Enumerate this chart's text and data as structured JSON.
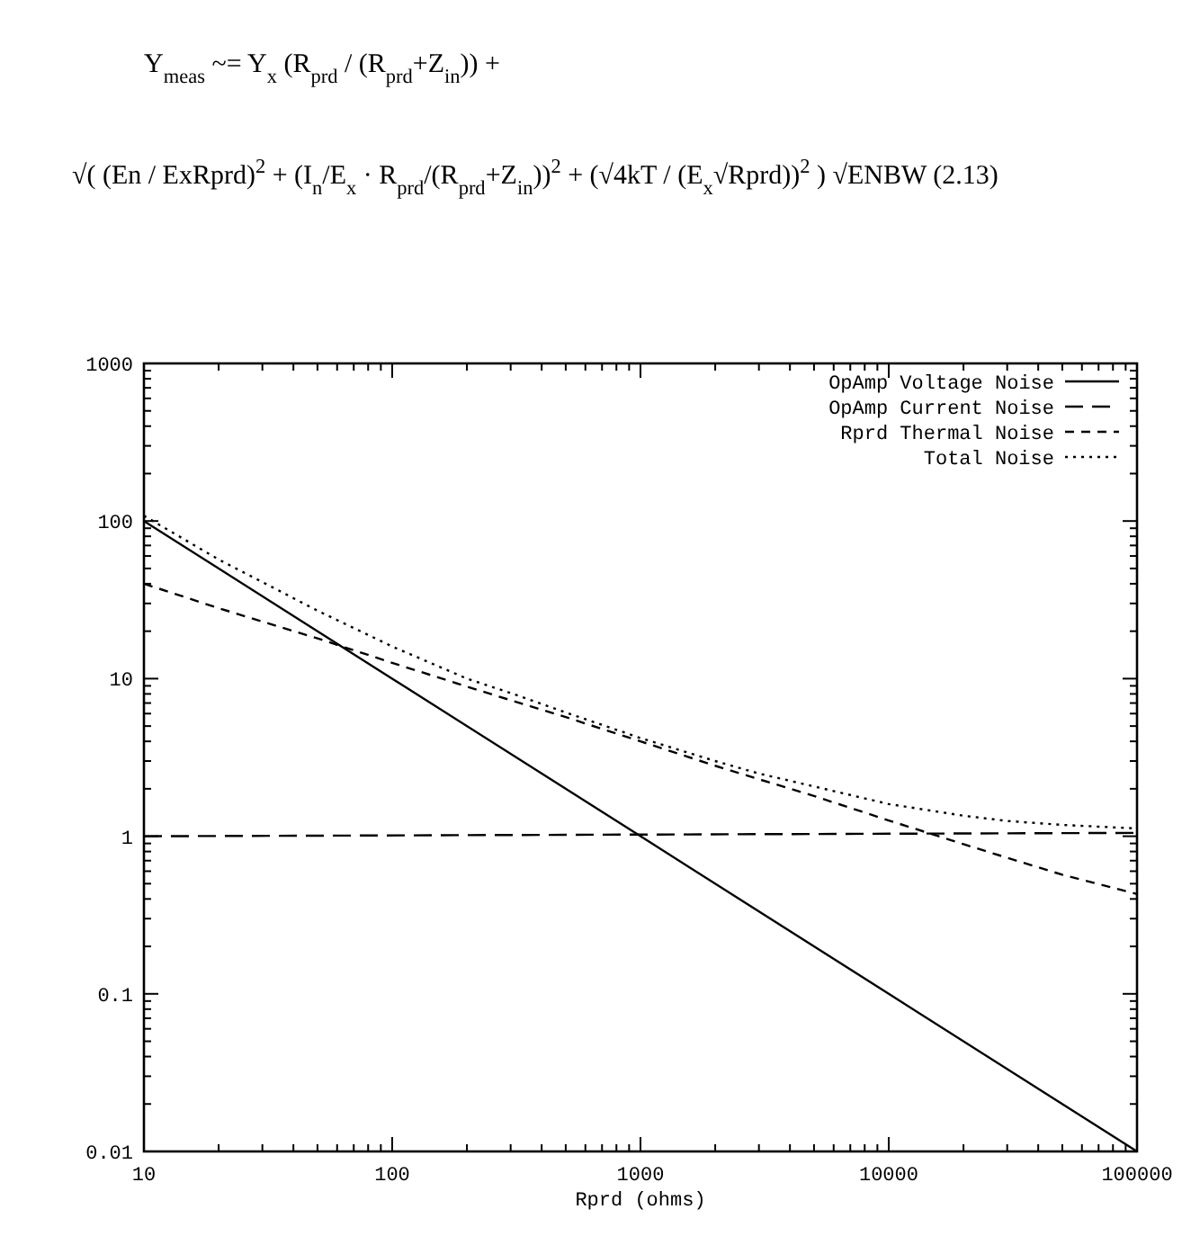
{
  "chart_data": {
    "type": "line",
    "xlabel": "Rprd (ohms)",
    "annotations": [
      "Y$_{meas}$ ~= Y$_{x}$ (R$_{prd}$ / (R$_{prd}$+Z$_{in}$)) +",
      "√( (En / ExRprd)$^{2}$ + (I$_{n}$/E$_{x}$ · R$_{prd}$/(R$_{prd}$+Z$_{in}$))$^{2}$ + (√4kT / (E$_{x}$√Rprd))$^{2}$ ) √ENBW     (2.13)"
    ],
    "log": "xy",
    "legend": "top right",
    "grid": false,
    "xlim": [
      10,
      100000
    ],
    "ylim": [
      0.01,
      1000
    ],
    "xticks": [
      10,
      {
        "value": 20,
        "label": null
      },
      {
        "value": 30,
        "label": null
      },
      {
        "value": 40,
        "label": null
      },
      {
        "value": 50,
        "label": null
      },
      {
        "value": 60,
        "label": null
      },
      {
        "value": 70,
        "label": null
      },
      {
        "value": 80,
        "label": null
      },
      {
        "value": 90,
        "label": null
      },
      100,
      {
        "value": 200,
        "label": null
      },
      {
        "value": 300,
        "label": null
      },
      {
        "value": 400,
        "label": null
      },
      {
        "value": 500,
        "label": null
      },
      {
        "value": 600,
        "label": null
      },
      {
        "value": 700,
        "label": null
      },
      {
        "value": 800,
        "label": null
      },
      {
        "value": 900,
        "label": null
      },
      1000,
      {
        "value": 2000,
        "label": null
      },
      {
        "value": 3000,
        "label": null
      },
      {
        "value": 4000,
        "label": null
      },
      {
        "value": 5000,
        "label": null
      },
      {
        "value": 6000,
        "label": null
      },
      {
        "value": 7000,
        "label": null
      },
      {
        "value": 8000,
        "label": null
      },
      {
        "value": 9000,
        "label": null
      },
      10000,
      {
        "value": 20000,
        "label": null
      },
      {
        "value": 30000,
        "label": null
      },
      {
        "value": 40000,
        "label": null
      },
      {
        "value": 50000,
        "label": null
      },
      {
        "value": 60000,
        "label": null
      },
      {
        "value": 70000,
        "label": null
      },
      {
        "value": 80000,
        "label": null
      },
      {
        "value": 90000,
        "label": null
      },
      100000
    ],
    "yticks": [
      0.01,
      {
        "value": 0.02,
        "label": null
      },
      {
        "value": 0.03,
        "label": null
      },
      {
        "value": 0.04,
        "label": null
      },
      {
        "value": 0.05,
        "label": null
      },
      {
        "value": 0.06,
        "label": null
      },
      {
        "value": 0.07,
        "label": null
      },
      {
        "value": 0.08,
        "label": null
      },
      {
        "value": 0.09,
        "label": null
      },
      0.1,
      {
        "value": 0.2,
        "label": null
      },
      {
        "value": 0.3,
        "label": null
      },
      {
        "value": 0.4,
        "label": null
      },
      {
        "value": 0.5,
        "label": null
      },
      {
        "value": 0.6,
        "label": null
      },
      {
        "value": 0.7,
        "label": null
      },
      {
        "value": 0.8,
        "label": null
      },
      {
        "value": 0.9,
        "label": null
      },
      1,
      {
        "value": 2,
        "label": null
      },
      {
        "value": 3,
        "label": null
      },
      {
        "value": 4,
        "label": null
      },
      {
        "value": 5,
        "label": null
      },
      {
        "value": 6,
        "label": null
      },
      {
        "value": 7,
        "label": null
      },
      {
        "value": 8,
        "label": null
      },
      {
        "value": 9,
        "label": null
      },
      10,
      {
        "value": 20,
        "label": null
      },
      {
        "value": 30,
        "label": null
      },
      {
        "value": 40,
        "label": null
      },
      {
        "value": 50,
        "label": null
      },
      {
        "value": 60,
        "label": null
      },
      {
        "value": 70,
        "label": null
      },
      {
        "value": 80,
        "label": null
      },
      {
        "value": 90,
        "label": null
      },
      100,
      {
        "value": 200,
        "label": null
      },
      {
        "value": 300,
        "label": null
      },
      {
        "value": 400,
        "label": null
      },
      {
        "value": 500,
        "label": null
      },
      {
        "value": 600,
        "label": null
      },
      {
        "value": 700,
        "label": null
      },
      {
        "value": 800,
        "label": null
      },
      {
        "value": 900,
        "label": null
      },
      1000
    ],
    "series": [
      {
        "name": "OpAmp Voltage Noise",
        "color": "#000000",
        "line_style": "solid",
        "x": [
          10,
          100,
          1000,
          10000,
          100000
        ],
        "values": [
          100,
          10,
          1,
          0.1,
          0.01
        ]
      },
      {
        "name": "OpAmp Current Noise",
        "color": "#000000",
        "line_style": "longdash",
        "x": [
          10,
          100000
        ],
        "values": [
          1,
          1.05
        ]
      },
      {
        "name": "Rprd Thermal Noise",
        "color": "#000000",
        "line_style": "dashed",
        "x": [
          10,
          20,
          30,
          50,
          100,
          200,
          300,
          500,
          1000,
          2000,
          3000,
          5000,
          10000,
          20000,
          30000,
          50000,
          100000
        ],
        "values": [
          40,
          28,
          23,
          18,
          12.6,
          8.9,
          7.3,
          5.7,
          4,
          2.8,
          2.3,
          1.8,
          1.26,
          0.89,
          0.73,
          0.57,
          0.43
        ]
      },
      {
        "name": "Total Noise",
        "color": "#000000",
        "line_style": "dotted",
        "x": [
          10,
          20,
          30,
          50,
          100,
          200,
          300,
          500,
          1000,
          2000,
          3000,
          5000,
          10000,
          20000,
          30000,
          50000,
          100000
        ],
        "values": [
          108,
          57,
          41,
          27,
          16,
          10,
          8.1,
          6.1,
          4.2,
          3,
          2.5,
          2.07,
          1.6,
          1.35,
          1.25,
          1.18,
          1.12
        ]
      }
    ]
  }
}
